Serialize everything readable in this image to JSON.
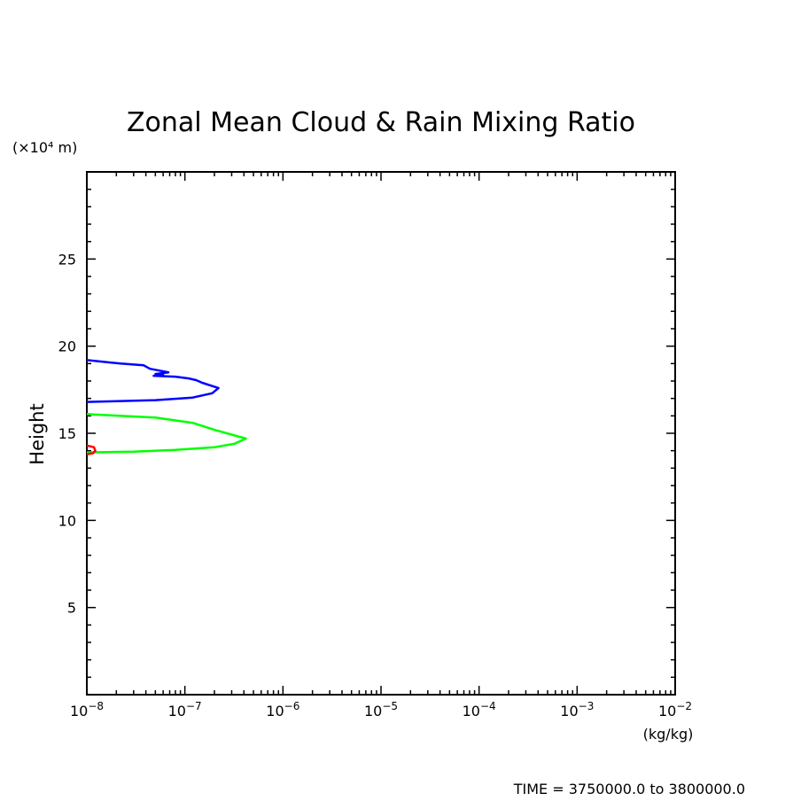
{
  "chart_data": {
    "type": "line",
    "title": "Zonal Mean Cloud & Rain Mixing Ratio",
    "ylabel": "Height",
    "yunit": "(×10⁴ m)",
    "xunit": "(kg/kg)",
    "footer": "TIME = 3750000.0 to 3800000.0",
    "xscale": "log",
    "xlim": [
      1e-08,
      0.01
    ],
    "ylim": [
      0,
      30
    ],
    "x_ticks": [
      {
        "value": 1e-08,
        "base": "10",
        "exp": "−8"
      },
      {
        "value": 1e-07,
        "base": "10",
        "exp": "−7"
      },
      {
        "value": 1e-06,
        "base": "10",
        "exp": "−6"
      },
      {
        "value": 1e-05,
        "base": "10",
        "exp": "−5"
      },
      {
        "value": 0.0001,
        "base": "10",
        "exp": "−4"
      },
      {
        "value": 0.001,
        "base": "10",
        "exp": "−3"
      },
      {
        "value": 0.01,
        "base": "10",
        "exp": "−2"
      }
    ],
    "y_ticks": [
      5,
      10,
      15,
      20,
      25
    ],
    "series": [
      {
        "color": "#0000ff",
        "points": [
          [
            1e-08,
            19.2
          ],
          [
            2.2e-08,
            19.0
          ],
          [
            3.8e-08,
            18.9
          ],
          [
            4.4e-08,
            18.7
          ],
          [
            6.8e-08,
            18.5
          ],
          [
            5e-08,
            18.4
          ],
          [
            6e-08,
            18.35
          ],
          [
            4.8e-08,
            18.3
          ],
          [
            8e-08,
            18.25
          ],
          [
            1.1e-07,
            18.15
          ],
          [
            1.3e-07,
            18.05
          ],
          [
            1.5e-07,
            17.9
          ],
          [
            2.2e-07,
            17.6
          ],
          [
            1.9e-07,
            17.3
          ],
          [
            1.2e-07,
            17.05
          ],
          [
            5e-08,
            16.9
          ],
          [
            1e-08,
            16.8
          ]
        ]
      },
      {
        "color": "#00ff00",
        "points": [
          [
            1e-08,
            16.1
          ],
          [
            5e-08,
            15.9
          ],
          [
            1.2e-07,
            15.6
          ],
          [
            2e-07,
            15.2
          ],
          [
            4.2e-07,
            14.7
          ],
          [
            3.2e-07,
            14.4
          ],
          [
            2e-07,
            14.2
          ],
          [
            8e-08,
            14.05
          ],
          [
            3e-08,
            13.95
          ],
          [
            1e-08,
            13.9
          ]
        ]
      },
      {
        "color": "#ff0000",
        "points": [
          [
            1e-08,
            14.3
          ],
          [
            1.18e-08,
            14.2
          ],
          [
            1.22e-08,
            14.0
          ],
          [
            1.15e-08,
            13.85
          ],
          [
            1e-08,
            13.8
          ]
        ]
      }
    ]
  }
}
